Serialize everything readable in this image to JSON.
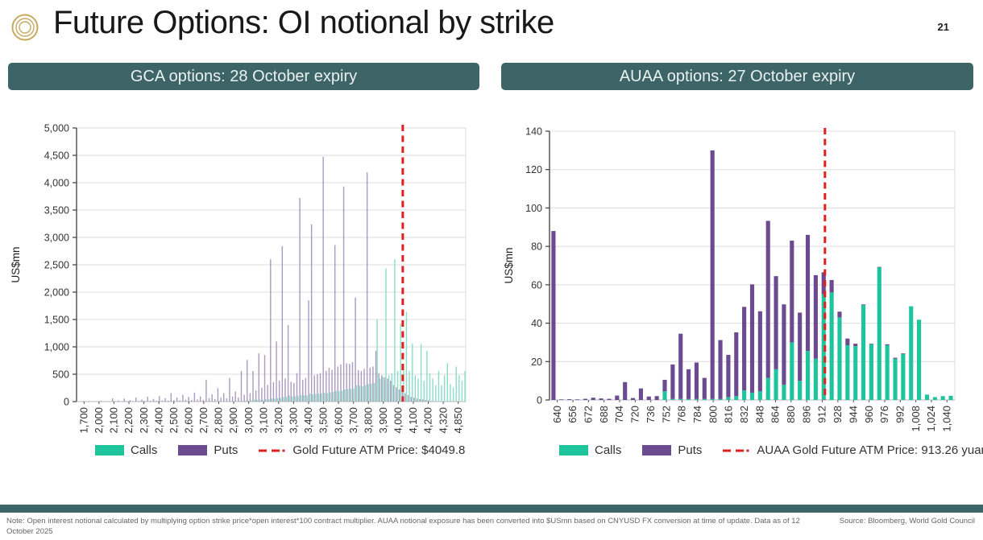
{
  "header": {
    "title": "Future Options: OI notional by strike",
    "page_number": "21",
    "logo_icon": "concentric-circles-gold-logo"
  },
  "sections": {
    "gca_title": "GCA options: 28 October expiry",
    "auaa_title": "AUAA options: 27 October expiry"
  },
  "footer": {
    "note": "Note: Open interest notional calculated by multiplying option strike price*open interest*100 contract multiplier. AUAA notional exposure has been converted into $USmn based on CNYUSD FX conversion at time of update. Data as of 12 October 2025",
    "source": "Source: Bloomberg, World Gold Council"
  },
  "colors": {
    "header_bg": "#3d6466",
    "calls": "#1ec49c",
    "puts": "#6b4a8f",
    "calls_light": "#7fd9c0",
    "puts_light": "#9b89b4",
    "atm_red": "#e01f1f",
    "grid": "#dcdcdc",
    "axis": "#3c3c3c"
  },
  "chart_data": [
    {
      "type": "bar",
      "mode": "overlay",
      "title": "GCA options: 28 October expiry",
      "ylabel": "US$mn",
      "ylim": [
        0,
        5000
      ],
      "yticks": [
        "0",
        "500",
        "1,000",
        "1,500",
        "2,000",
        "2,500",
        "3,000",
        "3,500",
        "4,000",
        "4,500",
        "5,000"
      ],
      "xticks": [
        "1,700",
        "2,000",
        "2,100",
        "2,200",
        "2,300",
        "2,400",
        "2,500",
        "2,600",
        "2,700",
        "2,800",
        "2,900",
        "3,000",
        "3,100",
        "3,200",
        "3,300",
        "3,400",
        "3,500",
        "3,600",
        "3,700",
        "3,800",
        "3,900",
        "4,000",
        "4,100",
        "4,200",
        "4,320",
        "4,850"
      ],
      "legend": {
        "calls": "Calls",
        "puts": "Puts",
        "atm": "Gold Future ATM Price: $4049.8"
      },
      "atm": {
        "value": 4049.8,
        "label": "Gold Future ATM Price: $4049.8"
      },
      "series_format": [
        "strike",
        "calls_USmn",
        "puts_USmn"
      ],
      "points": [
        [
          1700,
          0,
          3
        ],
        [
          1725,
          0,
          1
        ],
        [
          1750,
          0,
          5
        ],
        [
          1775,
          0,
          1
        ],
        [
          1800,
          0,
          9
        ],
        [
          1825,
          0,
          2
        ],
        [
          1850,
          0,
          5
        ],
        [
          1875,
          0,
          2
        ],
        [
          1900,
          0,
          14
        ],
        [
          1925,
          0,
          3
        ],
        [
          1950,
          0,
          7
        ],
        [
          1975,
          0,
          3
        ],
        [
          2000,
          0,
          60
        ],
        [
          2025,
          0,
          8
        ],
        [
          2050,
          0,
          20
        ],
        [
          2075,
          0,
          7
        ],
        [
          2100,
          0,
          55
        ],
        [
          2125,
          0,
          10
        ],
        [
          2150,
          0,
          28
        ],
        [
          2175,
          0,
          9
        ],
        [
          2200,
          0,
          75
        ],
        [
          2225,
          0,
          12
        ],
        [
          2250,
          0,
          38
        ],
        [
          2275,
          0,
          11
        ],
        [
          2300,
          0,
          88
        ],
        [
          2325,
          0,
          16
        ],
        [
          2350,
          0,
          48
        ],
        [
          2375,
          0,
          14
        ],
        [
          2400,
          0,
          100
        ],
        [
          2425,
          0,
          22
        ],
        [
          2450,
          0,
          62
        ],
        [
          2475,
          0,
          18
        ],
        [
          2500,
          0,
          155
        ],
        [
          2525,
          0,
          28
        ],
        [
          2550,
          0,
          75
        ],
        [
          2575,
          0,
          22
        ],
        [
          2600,
          0,
          125
        ],
        [
          2625,
          0,
          32
        ],
        [
          2650,
          0,
          85
        ],
        [
          2675,
          0,
          26
        ],
        [
          2700,
          0,
          165
        ],
        [
          2725,
          0,
          38
        ],
        [
          2750,
          0,
          95
        ],
        [
          2775,
          0,
          32
        ],
        [
          2800,
          0,
          400
        ],
        [
          2825,
          0,
          62
        ],
        [
          2850,
          0,
          135
        ],
        [
          2875,
          0,
          48
        ],
        [
          2900,
          0,
          245
        ],
        [
          2925,
          0,
          72
        ],
        [
          2950,
          0,
          155
        ],
        [
          2975,
          0,
          58
        ],
        [
          3000,
          5,
          430
        ],
        [
          3025,
          5,
          95
        ],
        [
          3050,
          8,
          185
        ],
        [
          3075,
          8,
          75
        ],
        [
          3100,
          12,
          560
        ],
        [
          3125,
          12,
          125
        ],
        [
          3150,
          18,
          760
        ],
        [
          3175,
          18,
          155
        ],
        [
          3200,
          35,
          560
        ],
        [
          3225,
          28,
          205
        ],
        [
          3250,
          35,
          880
        ],
        [
          3275,
          32,
          255
        ],
        [
          3300,
          45,
          850
        ],
        [
          3325,
          45,
          305
        ],
        [
          3350,
          55,
          2600
        ],
        [
          3375,
          55,
          355
        ],
        [
          3400,
          65,
          1100
        ],
        [
          3425,
          65,
          385
        ],
        [
          3450,
          85,
          2840
        ],
        [
          3475,
          85,
          425
        ],
        [
          3500,
          110,
          1400
        ],
        [
          3520,
          95,
          360
        ],
        [
          3530,
          100,
          340
        ],
        [
          3540,
          105,
          520
        ],
        [
          3560,
          120,
          3720
        ],
        [
          3570,
          115,
          400
        ],
        [
          3580,
          110,
          430
        ],
        [
          3600,
          150,
          1850
        ],
        [
          3610,
          130,
          3240
        ],
        [
          3620,
          140,
          480
        ],
        [
          3630,
          145,
          500
        ],
        [
          3640,
          150,
          520
        ],
        [
          3650,
          160,
          4475
        ],
        [
          3660,
          150,
          560
        ],
        [
          3680,
          170,
          620
        ],
        [
          3690,
          180,
          580
        ],
        [
          3700,
          200,
          2860
        ],
        [
          3720,
          190,
          640
        ],
        [
          3740,
          200,
          680
        ],
        [
          3750,
          220,
          3930
        ],
        [
          3760,
          230,
          700
        ],
        [
          3770,
          235,
          690
        ],
        [
          3780,
          240,
          720
        ],
        [
          3800,
          300,
          1900
        ],
        [
          3810,
          290,
          575
        ],
        [
          3820,
          280,
          560
        ],
        [
          3840,
          300,
          600
        ],
        [
          3850,
          320,
          4190
        ],
        [
          3860,
          330,
          620
        ],
        [
          3880,
          340,
          640
        ],
        [
          3900,
          1500,
          930
        ],
        [
          3920,
          420,
          520
        ],
        [
          3940,
          450,
          480
        ],
        [
          3950,
          2430,
          440
        ],
        [
          3960,
          480,
          420
        ],
        [
          3980,
          520,
          380
        ],
        [
          4000,
          2600,
          300
        ],
        [
          4020,
          560,
          260
        ],
        [
          4040,
          1430,
          220
        ],
        [
          4050,
          620,
          180
        ],
        [
          4060,
          1640,
          150
        ],
        [
          4080,
          560,
          120
        ],
        [
          4100,
          1060,
          90
        ],
        [
          4120,
          480,
          70
        ],
        [
          4140,
          420,
          55
        ],
        [
          4150,
          1050,
          45
        ],
        [
          4160,
          380,
          40
        ],
        [
          4180,
          930,
          30
        ],
        [
          4200,
          520,
          25
        ],
        [
          4240,
          420,
          10
        ],
        [
          4270,
          300,
          6
        ],
        [
          4300,
          560,
          5
        ],
        [
          4320,
          300,
          4
        ],
        [
          4360,
          480,
          3
        ],
        [
          4420,
          700,
          3
        ],
        [
          4480,
          320,
          2
        ],
        [
          4550,
          260,
          2
        ],
        [
          4620,
          640,
          2
        ],
        [
          4700,
          480,
          1
        ],
        [
          4780,
          380,
          1
        ],
        [
          4850,
          560,
          1
        ]
      ]
    },
    {
      "type": "bar",
      "mode": "stacked",
      "title": "AUAA options: 27 October expiry",
      "ylabel": "US$mn",
      "ylim": [
        0,
        140
      ],
      "yticks": [
        "0",
        "20",
        "40",
        "60",
        "80",
        "100",
        "120",
        "140"
      ],
      "xticks": [
        "640",
        "656",
        "672",
        "688",
        "704",
        "720",
        "736",
        "752",
        "768",
        "784",
        "800",
        "816",
        "832",
        "848",
        "864",
        "880",
        "896",
        "912",
        "928",
        "944",
        "960",
        "976",
        "992",
        "1,008",
        "1,024",
        "1,040"
      ],
      "legend": {
        "calls": "Calls",
        "puts": "Puts",
        "atm": "AUAA Gold Future ATM Price: 913.26 yuan/g"
      },
      "atm": {
        "value": 913.26,
        "label": "AUAA Gold Future ATM Price: 913.26 yuan/g"
      },
      "series_format": [
        "strike",
        "calls_USmn",
        "puts_USmn"
      ],
      "points": [
        [
          640,
          0,
          88
        ],
        [
          648,
          0,
          0.3
        ],
        [
          656,
          0,
          0.4
        ],
        [
          664,
          0,
          0.3
        ],
        [
          672,
          0,
          0.6
        ],
        [
          680,
          0,
          1.2
        ],
        [
          688,
          0,
          0.8
        ],
        [
          696,
          0,
          0.6
        ],
        [
          704,
          0,
          2.3
        ],
        [
          712,
          0,
          9.3
        ],
        [
          720,
          0,
          1
        ],
        [
          728,
          0,
          6
        ],
        [
          736,
          0,
          1.8
        ],
        [
          744,
          0,
          2
        ],
        [
          752,
          4.5,
          6
        ],
        [
          760,
          0.5,
          18
        ],
        [
          768,
          0.5,
          34
        ],
        [
          776,
          0.5,
          15.5
        ],
        [
          784,
          0.5,
          19
        ],
        [
          792,
          0.5,
          11
        ],
        [
          800,
          0.5,
          129.5
        ],
        [
          808,
          0.5,
          30.7
        ],
        [
          816,
          1.5,
          22
        ],
        [
          824,
          2,
          33.2
        ],
        [
          832,
          5,
          43.5
        ],
        [
          840,
          3.8,
          56.4
        ],
        [
          848,
          4.5,
          41.7
        ],
        [
          856,
          11.5,
          81.8
        ],
        [
          864,
          16,
          48.5
        ],
        [
          872,
          8,
          41.8
        ],
        [
          880,
          30,
          53
        ],
        [
          888,
          10,
          35.5
        ],
        [
          896,
          25.5,
          60.5
        ],
        [
          904,
          21.5,
          43.5
        ],
        [
          912,
          55,
          11.5
        ],
        [
          920,
          56,
          6.5
        ],
        [
          928,
          43,
          3
        ],
        [
          936,
          28.5,
          3.5
        ],
        [
          944,
          28,
          1.3
        ],
        [
          952,
          49.5,
          0.3
        ],
        [
          960,
          29,
          0.3
        ],
        [
          968,
          69,
          0.3
        ],
        [
          976,
          28.5,
          0.5
        ],
        [
          984,
          21.5,
          0.5
        ],
        [
          992,
          24,
          0.3
        ],
        [
          1000,
          48.8,
          0
        ],
        [
          1008,
          41.8,
          0
        ],
        [
          1016,
          2.8,
          0
        ],
        [
          1024,
          1.5,
          0
        ],
        [
          1032,
          2,
          0
        ],
        [
          1040,
          2.2,
          0
        ]
      ]
    }
  ]
}
